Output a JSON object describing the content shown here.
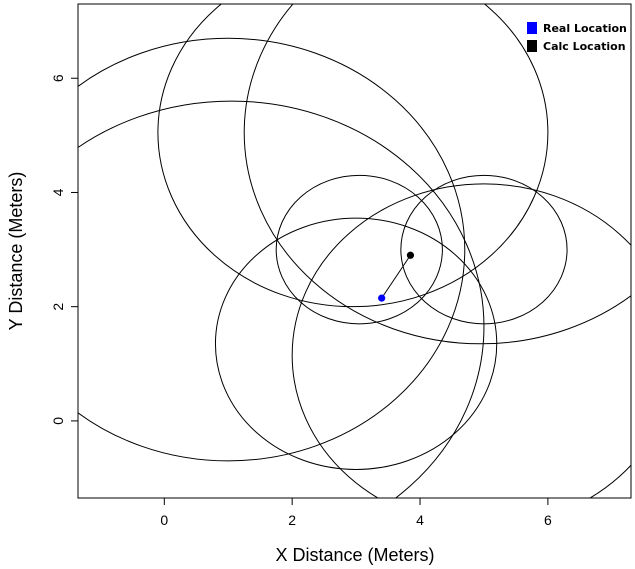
{
  "chart_data": {
    "type": "scatter",
    "title": "",
    "xlabel": "X Distance (Meters)",
    "ylabel": "Y Distance (Meters)",
    "xlim": [
      -1.35,
      7.3
    ],
    "ylim": [
      -1.35,
      7.3
    ],
    "x_ticks": [
      0,
      2,
      4,
      6
    ],
    "y_ticks": [
      0,
      2,
      4,
      6
    ],
    "grid": false,
    "legend_position": "top-right",
    "points": [
      {
        "label": "Real Location",
        "x": 3.4,
        "y": 2.15,
        "color": "#0000ff"
      },
      {
        "label": "Calc Location",
        "x": 3.85,
        "y": 2.9,
        "color": "#000000"
      }
    ],
    "connector": {
      "from": [
        3.4,
        2.15
      ],
      "to": [
        3.85,
        2.9
      ],
      "color": "#000000"
    },
    "circles": [
      {
        "cx": 1.0,
        "cy": 3.0,
        "r": 3.7
      },
      {
        "cx": 1.05,
        "cy": 1.65,
        "r": 3.95
      },
      {
        "cx": 2.95,
        "cy": 5.05,
        "r": 3.05
      },
      {
        "cx": 4.95,
        "cy": 5.05,
        "r": 3.7
      },
      {
        "cx": 3.0,
        "cy": 1.35,
        "r": 2.2
      },
      {
        "cx": 5.0,
        "cy": 1.15,
        "r": 3.0
      },
      {
        "cx": 3.05,
        "cy": 3.0,
        "r": 1.3
      },
      {
        "cx": 5.0,
        "cy": 3.0,
        "r": 1.3
      }
    ],
    "legend": [
      {
        "label": "Real Location",
        "color": "#0000ff"
      },
      {
        "label": "Calc Location",
        "color": "#000000"
      }
    ]
  }
}
